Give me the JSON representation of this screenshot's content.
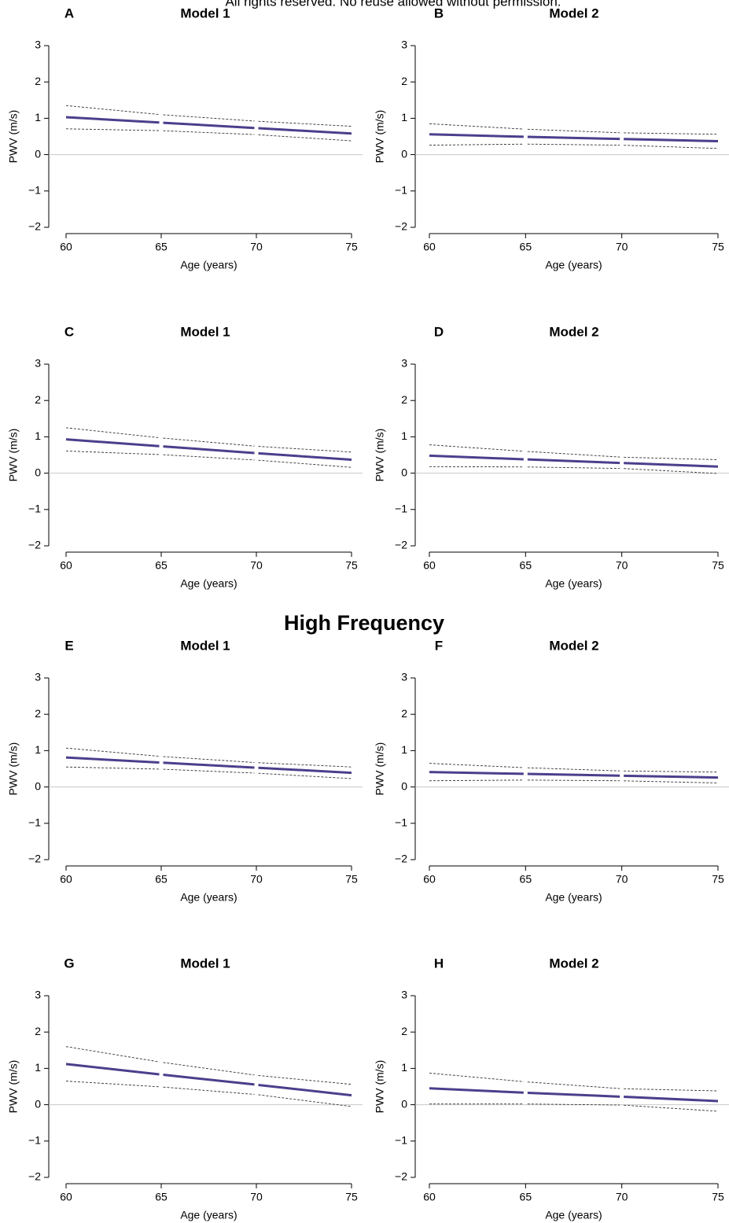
{
  "header_text": "All rights reserved. No reuse allowed without permission.",
  "section_title": "High Frequency",
  "chart_data": [
    {
      "type": "line",
      "panel": "A",
      "title": "Model 1",
      "x_label": "Age (years)",
      "y_label": "PWV (m/s)",
      "x": [
        60,
        65,
        70,
        75
      ],
      "xlim": [
        60,
        75
      ],
      "xticks": [
        60,
        65,
        70,
        75
      ],
      "ylim": [
        -2,
        3
      ],
      "yticks": [
        {
          "value": -2,
          "label": "−2"
        },
        {
          "value": -1,
          "label": "−1"
        },
        0,
        1,
        2,
        3
      ],
      "zero_line": true,
      "series": [
        {
          "color": "#4b3f8c",
          "dashed": false,
          "values": [
            1.03,
            0.88,
            0.73,
            0.58
          ]
        },
        {
          "color": "#333333",
          "dashed": true,
          "values": [
            1.35,
            1.1,
            0.92,
            0.78
          ]
        },
        {
          "color": "#333333",
          "dashed": true,
          "values": [
            0.71,
            0.66,
            0.55,
            0.38
          ]
        }
      ]
    },
    {
      "type": "line",
      "panel": "B",
      "title": "Model 2",
      "x_label": "Age (years)",
      "y_label": "PWV (m/s)",
      "x": [
        60,
        65,
        70,
        75
      ],
      "xlim": [
        60,
        75
      ],
      "xticks": [
        60,
        65,
        70,
        75
      ],
      "ylim": [
        -2,
        3
      ],
      "yticks": [
        {
          "value": -2,
          "label": "−2"
        },
        {
          "value": -1,
          "label": "−1"
        },
        0,
        1,
        2,
        3
      ],
      "zero_line": true,
      "series": [
        {
          "color": "#4b3f8c",
          "dashed": false,
          "values": [
            0.56,
            0.49,
            0.43,
            0.37
          ]
        },
        {
          "color": "#333333",
          "dashed": true,
          "values": [
            0.85,
            0.7,
            0.6,
            0.56
          ]
        },
        {
          "color": "#333333",
          "dashed": true,
          "values": [
            0.26,
            0.29,
            0.26,
            0.17
          ]
        }
      ]
    },
    {
      "type": "line",
      "panel": "C",
      "title": "Model 1",
      "x_label": "Age (years)",
      "y_label": "PWV (m/s)",
      "x": [
        60,
        65,
        70,
        75
      ],
      "xlim": [
        60,
        75
      ],
      "xticks": [
        60,
        65,
        70,
        75
      ],
      "ylim": [
        -2,
        3
      ],
      "yticks": [
        {
          "value": -2,
          "label": "−2"
        },
        {
          "value": -1,
          "label": "−1"
        },
        0,
        1,
        2,
        3
      ],
      "zero_line": true,
      "series": [
        {
          "color": "#4b3f8c",
          "dashed": false,
          "values": [
            0.93,
            0.74,
            0.55,
            0.37
          ]
        },
        {
          "color": "#333333",
          "dashed": true,
          "values": [
            1.25,
            0.97,
            0.74,
            0.58
          ]
        },
        {
          "color": "#333333",
          "dashed": true,
          "values": [
            0.61,
            0.51,
            0.36,
            0.16
          ]
        }
      ]
    },
    {
      "type": "line",
      "panel": "D",
      "title": "Model 2",
      "x_label": "Age (years)",
      "y_label": "PWV (m/s)",
      "x": [
        60,
        65,
        70,
        75
      ],
      "xlim": [
        60,
        75
      ],
      "xticks": [
        60,
        65,
        70,
        75
      ],
      "ylim": [
        -2,
        3
      ],
      "yticks": [
        {
          "value": -2,
          "label": "−2"
        },
        {
          "value": -1,
          "label": "−1"
        },
        0,
        1,
        2,
        3
      ],
      "zero_line": true,
      "series": [
        {
          "color": "#4b3f8c",
          "dashed": false,
          "values": [
            0.48,
            0.38,
            0.28,
            0.18
          ]
        },
        {
          "color": "#333333",
          "dashed": true,
          "values": [
            0.78,
            0.6,
            0.44,
            0.37
          ]
        },
        {
          "color": "#333333",
          "dashed": true,
          "values": [
            0.18,
            0.17,
            0.13,
            -0.01
          ]
        }
      ]
    },
    {
      "type": "line",
      "panel": "E",
      "title": "Model 1",
      "x_label": "Age (years)",
      "y_label": "PWV (m/s)",
      "x": [
        60,
        65,
        70,
        75
      ],
      "xlim": [
        60,
        75
      ],
      "xticks": [
        60,
        65,
        70,
        75
      ],
      "ylim": [
        -2,
        3
      ],
      "yticks": [
        {
          "value": -2,
          "label": "−2"
        },
        {
          "value": -1,
          "label": "−1"
        },
        0,
        1,
        2,
        3
      ],
      "zero_line": true,
      "series": [
        {
          "color": "#4b3f8c",
          "dashed": false,
          "values": [
            0.81,
            0.67,
            0.53,
            0.39
          ]
        },
        {
          "color": "#333333",
          "dashed": true,
          "values": [
            1.07,
            0.84,
            0.67,
            0.55
          ]
        },
        {
          "color": "#333333",
          "dashed": true,
          "values": [
            0.55,
            0.49,
            0.38,
            0.23
          ]
        }
      ]
    },
    {
      "type": "line",
      "panel": "F",
      "title": "Model 2",
      "x_label": "Age (years)",
      "y_label": "PWV (m/s)",
      "x": [
        60,
        65,
        70,
        75
      ],
      "xlim": [
        60,
        75
      ],
      "xticks": [
        60,
        65,
        70,
        75
      ],
      "ylim": [
        -2,
        3
      ],
      "yticks": [
        {
          "value": -2,
          "label": "−2"
        },
        {
          "value": -1,
          "label": "−1"
        },
        0,
        1,
        2,
        3
      ],
      "zero_line": true,
      "series": [
        {
          "color": "#4b3f8c",
          "dashed": false,
          "values": [
            0.41,
            0.36,
            0.31,
            0.26
          ]
        },
        {
          "color": "#333333",
          "dashed": true,
          "values": [
            0.65,
            0.53,
            0.44,
            0.41
          ]
        },
        {
          "color": "#333333",
          "dashed": true,
          "values": [
            0.17,
            0.19,
            0.17,
            0.11
          ]
        }
      ]
    },
    {
      "type": "line",
      "panel": "G",
      "title": "Model 1",
      "x_label": "Age (years)",
      "y_label": "PWV (m/s)",
      "x": [
        60,
        65,
        70,
        75
      ],
      "xlim": [
        60,
        75
      ],
      "xticks": [
        60,
        65,
        70,
        75
      ],
      "ylim": [
        -2,
        3
      ],
      "yticks": [
        {
          "value": -2,
          "label": "−2"
        },
        {
          "value": -1,
          "label": "−1"
        },
        0,
        1,
        2,
        3
      ],
      "zero_line": true,
      "series": [
        {
          "color": "#4b3f8c",
          "dashed": false,
          "values": [
            1.12,
            0.83,
            0.55,
            0.26
          ]
        },
        {
          "color": "#333333",
          "dashed": true,
          "values": [
            1.6,
            1.17,
            0.81,
            0.56
          ]
        },
        {
          "color": "#333333",
          "dashed": true,
          "values": [
            0.65,
            0.49,
            0.28,
            -0.05
          ]
        }
      ]
    },
    {
      "type": "line",
      "panel": "H",
      "title": "Model 2",
      "x_label": "Age (years)",
      "y_label": "PWV (m/s)",
      "x": [
        60,
        65,
        70,
        75
      ],
      "xlim": [
        60,
        75
      ],
      "xticks": [
        60,
        65,
        70,
        75
      ],
      "ylim": [
        -2,
        3
      ],
      "yticks": [
        {
          "value": -2,
          "label": "−2"
        },
        {
          "value": -1,
          "label": "−1"
        },
        0,
        1,
        2,
        3
      ],
      "zero_line": true,
      "series": [
        {
          "color": "#4b3f8c",
          "dashed": false,
          "values": [
            0.45,
            0.33,
            0.22,
            0.1
          ]
        },
        {
          "color": "#333333",
          "dashed": true,
          "values": [
            0.87,
            0.63,
            0.44,
            0.38
          ]
        },
        {
          "color": "#333333",
          "dashed": true,
          "values": [
            0.02,
            0.02,
            -0.01,
            -0.18
          ]
        }
      ]
    }
  ]
}
